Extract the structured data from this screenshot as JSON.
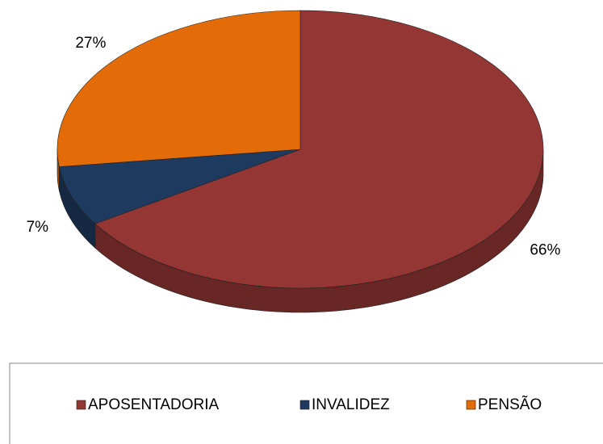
{
  "chart_data": {
    "type": "pie",
    "categories": [
      "APOSENTADORIA",
      "INVALIDEZ",
      "PENSÃO"
    ],
    "values": [
      66,
      7,
      27
    ],
    "value_labels": [
      "66%",
      "7%",
      "27%"
    ],
    "colors": [
      "#943634",
      "#1f3a5f",
      "#e36c09"
    ],
    "legend": "bottom"
  }
}
